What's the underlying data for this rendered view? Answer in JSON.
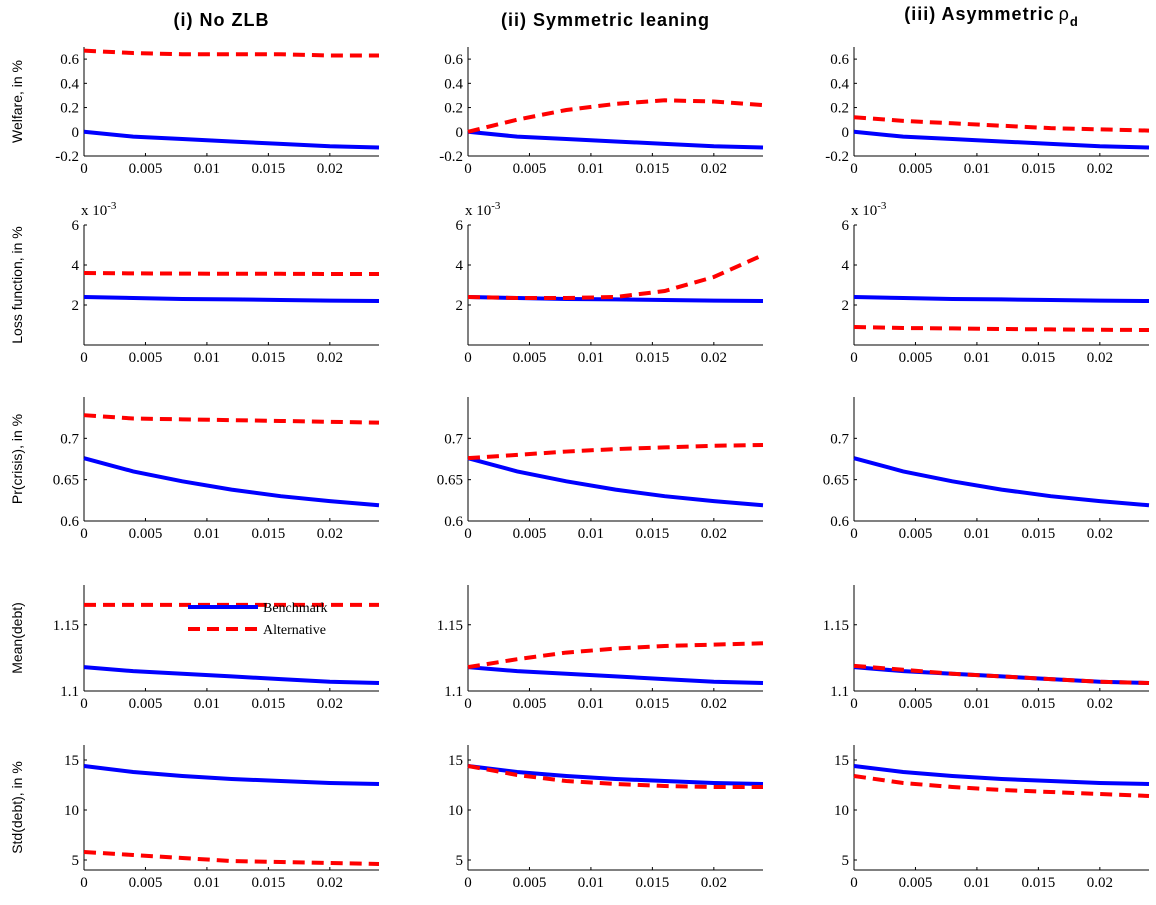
{
  "chart_data": [
    {
      "type": "line",
      "title": "(i) No ZLB",
      "ylabel": "Welfare, in %",
      "x": [
        0,
        0.004,
        0.008,
        0.012,
        0.016,
        0.02,
        0.024
      ],
      "xlim": [
        0,
        0.024
      ],
      "xticks": [
        0,
        0.005,
        0.01,
        0.015,
        0.02
      ],
      "ylim": [
        -0.2,
        0.7
      ],
      "yticks": [
        -0.2,
        0,
        0.2,
        0.4,
        0.6
      ],
      "series": [
        {
          "color": "#0000ff",
          "values": [
            0,
            -0.04,
            -0.06,
            -0.08,
            -0.1,
            -0.12,
            -0.13
          ]
        },
        {
          "color": "#ff0000",
          "dashed": true,
          "values": [
            0.67,
            0.65,
            0.64,
            0.64,
            0.64,
            0.63,
            0.63
          ]
        }
      ]
    },
    {
      "type": "line",
      "title": "(ii) Symmetric leaning",
      "x": [
        0,
        0.004,
        0.008,
        0.012,
        0.016,
        0.02,
        0.024
      ],
      "xlim": [
        0,
        0.024
      ],
      "xticks": [
        0,
        0.005,
        0.01,
        0.015,
        0.02
      ],
      "ylim": [
        -0.2,
        0.7
      ],
      "yticks": [
        -0.2,
        0,
        0.2,
        0.4,
        0.6
      ],
      "series": [
        {
          "color": "#0000ff",
          "values": [
            0,
            -0.04,
            -0.06,
            -0.08,
            -0.1,
            -0.12,
            -0.13
          ]
        },
        {
          "color": "#ff0000",
          "dashed": true,
          "values": [
            0,
            0.1,
            0.18,
            0.23,
            0.26,
            0.25,
            0.22
          ]
        }
      ]
    },
    {
      "type": "line",
      "title": "(iii) Asymmetric",
      "title_symbol": "ρ",
      "title_subscript": "d",
      "x": [
        0,
        0.004,
        0.008,
        0.012,
        0.016,
        0.02,
        0.024
      ],
      "xlim": [
        0,
        0.024
      ],
      "xticks": [
        0,
        0.005,
        0.01,
        0.015,
        0.02
      ],
      "ylim": [
        -0.2,
        0.7
      ],
      "yticks": [
        -0.2,
        0,
        0.2,
        0.4,
        0.6
      ],
      "series": [
        {
          "color": "#0000ff",
          "values": [
            0,
            -0.04,
            -0.06,
            -0.08,
            -0.1,
            -0.12,
            -0.13
          ]
        },
        {
          "color": "#ff0000",
          "dashed": true,
          "values": [
            0.12,
            0.09,
            0.07,
            0.05,
            0.03,
            0.02,
            0.01
          ]
        }
      ]
    },
    {
      "type": "line",
      "ylabel": "Loss function, in %",
      "y_multiplier": "x 10",
      "y_multiplier_exponent": "-3",
      "x": [
        0,
        0.004,
        0.008,
        0.012,
        0.016,
        0.02,
        0.024
      ],
      "xlim": [
        0,
        0.024
      ],
      "xticks": [
        0,
        0.005,
        0.01,
        0.015,
        0.02
      ],
      "ylim": [
        0,
        0.006
      ],
      "yticks": [
        {
          "value": 0.002,
          "label": "2"
        },
        {
          "value": 0.004,
          "label": "4"
        },
        {
          "value": 0.006,
          "label": "6"
        }
      ],
      "series": [
        {
          "color": "#0000ff",
          "values": [
            0.0024,
            0.00235,
            0.0023,
            0.00228,
            0.00225,
            0.00222,
            0.0022
          ]
        },
        {
          "color": "#ff0000",
          "dashed": true,
          "values": [
            0.0036,
            0.00358,
            0.00357,
            0.00356,
            0.00356,
            0.00355,
            0.00355
          ]
        }
      ]
    },
    {
      "type": "line",
      "y_multiplier": "x 10",
      "y_multiplier_exponent": "-3",
      "x": [
        0,
        0.004,
        0.008,
        0.012,
        0.016,
        0.02,
        0.024
      ],
      "xlim": [
        0,
        0.024
      ],
      "xticks": [
        0,
        0.005,
        0.01,
        0.015,
        0.02
      ],
      "ylim": [
        0,
        0.006
      ],
      "yticks": [
        {
          "value": 0.002,
          "label": "2"
        },
        {
          "value": 0.004,
          "label": "4"
        },
        {
          "value": 0.006,
          "label": "6"
        }
      ],
      "series": [
        {
          "color": "#0000ff",
          "values": [
            0.0024,
            0.00235,
            0.0023,
            0.00228,
            0.00225,
            0.00222,
            0.0022
          ]
        },
        {
          "color": "#ff0000",
          "dashed": true,
          "values": [
            0.0024,
            0.00235,
            0.00235,
            0.0024,
            0.0027,
            0.0034,
            0.0045
          ]
        }
      ]
    },
    {
      "type": "line",
      "y_multiplier": "x 10",
      "y_multiplier_exponent": "-3",
      "x": [
        0,
        0.004,
        0.008,
        0.012,
        0.016,
        0.02,
        0.024
      ],
      "xlim": [
        0,
        0.024
      ],
      "xticks": [
        0,
        0.005,
        0.01,
        0.015,
        0.02
      ],
      "ylim": [
        0,
        0.006
      ],
      "yticks": [
        {
          "value": 0.002,
          "label": "2"
        },
        {
          "value": 0.004,
          "label": "4"
        },
        {
          "value": 0.006,
          "label": "6"
        }
      ],
      "series": [
        {
          "color": "#0000ff",
          "values": [
            0.0024,
            0.00235,
            0.0023,
            0.00228,
            0.00225,
            0.00222,
            0.0022
          ]
        },
        {
          "color": "#ff0000",
          "dashed": true,
          "values": [
            0.0009,
            0.00085,
            0.00083,
            0.0008,
            0.00078,
            0.00076,
            0.00075
          ]
        }
      ]
    },
    {
      "type": "line",
      "ylabel": "Pr(crisis), in %",
      "x": [
        0,
        0.004,
        0.008,
        0.012,
        0.016,
        0.02,
        0.024
      ],
      "xlim": [
        0,
        0.024
      ],
      "xticks": [
        0,
        0.005,
        0.01,
        0.015,
        0.02
      ],
      "ylim": [
        0.6,
        0.75
      ],
      "yticks": [
        0.6,
        0.65,
        0.7
      ],
      "series": [
        {
          "color": "#0000ff",
          "values": [
            0.676,
            0.66,
            0.648,
            0.638,
            0.63,
            0.624,
            0.619
          ]
        },
        {
          "color": "#ff0000",
          "dashed": true,
          "values": [
            0.728,
            0.724,
            0.723,
            0.722,
            0.721,
            0.72,
            0.719
          ]
        }
      ]
    },
    {
      "type": "line",
      "x": [
        0,
        0.004,
        0.008,
        0.012,
        0.016,
        0.02,
        0.024
      ],
      "xlim": [
        0,
        0.024
      ],
      "xticks": [
        0,
        0.005,
        0.01,
        0.015,
        0.02
      ],
      "ylim": [
        0.6,
        0.75
      ],
      "yticks": [
        0.6,
        0.65,
        0.7
      ],
      "series": [
        {
          "color": "#0000ff",
          "values": [
            0.676,
            0.66,
            0.648,
            0.638,
            0.63,
            0.624,
            0.619
          ]
        },
        {
          "color": "#ff0000",
          "dashed": true,
          "values": [
            0.676,
            0.68,
            0.684,
            0.687,
            0.689,
            0.691,
            0.692
          ]
        }
      ]
    },
    {
      "type": "line",
      "x": [
        0,
        0.004,
        0.008,
        0.012,
        0.016,
        0.02,
        0.024
      ],
      "xlim": [
        0,
        0.024
      ],
      "xticks": [
        0,
        0.005,
        0.01,
        0.015,
        0.02
      ],
      "ylim": [
        0.6,
        0.75
      ],
      "yticks": [
        0.6,
        0.65,
        0.7
      ],
      "series": [
        {
          "color": "#0000ff",
          "values": [
            0.676,
            0.66,
            0.648,
            0.638,
            0.63,
            0.624,
            0.619
          ]
        }
      ]
    },
    {
      "type": "line",
      "ylabel": "Mean(debt)",
      "legend": true,
      "x": [
        0,
        0.004,
        0.008,
        0.012,
        0.016,
        0.02,
        0.024
      ],
      "xlim": [
        0,
        0.024
      ],
      "xticks": [
        0,
        0.005,
        0.01,
        0.015,
        0.02
      ],
      "ylim": [
        1.1,
        1.18
      ],
      "yticks": [
        1.1,
        1.15
      ],
      "series": [
        {
          "name": "Benchmark",
          "color": "#0000ff",
          "values": [
            1.118,
            1.115,
            1.113,
            1.111,
            1.109,
            1.107,
            1.106
          ]
        },
        {
          "name": "Alternative",
          "color": "#ff0000",
          "dashed": true,
          "values": [
            1.165,
            1.165,
            1.165,
            1.165,
            1.165,
            1.165,
            1.165
          ]
        }
      ]
    },
    {
      "type": "line",
      "x": [
        0,
        0.004,
        0.008,
        0.012,
        0.016,
        0.02,
        0.024
      ],
      "xlim": [
        0,
        0.024
      ],
      "xticks": [
        0,
        0.005,
        0.01,
        0.015,
        0.02
      ],
      "ylim": [
        1.1,
        1.18
      ],
      "yticks": [
        1.1,
        1.15
      ],
      "series": [
        {
          "color": "#0000ff",
          "values": [
            1.118,
            1.115,
            1.113,
            1.111,
            1.109,
            1.107,
            1.106
          ]
        },
        {
          "color": "#ff0000",
          "dashed": true,
          "values": [
            1.118,
            1.124,
            1.129,
            1.132,
            1.134,
            1.135,
            1.136
          ]
        }
      ]
    },
    {
      "type": "line",
      "x": [
        0,
        0.004,
        0.008,
        0.012,
        0.016,
        0.02,
        0.024
      ],
      "xlim": [
        0,
        0.024
      ],
      "xticks": [
        0,
        0.005,
        0.01,
        0.015,
        0.02
      ],
      "ylim": [
        1.1,
        1.18
      ],
      "yticks": [
        1.1,
        1.15
      ],
      "series": [
        {
          "color": "#0000ff",
          "values": [
            1.118,
            1.115,
            1.113,
            1.111,
            1.109,
            1.107,
            1.106
          ]
        },
        {
          "color": "#ff0000",
          "dashed": true,
          "values": [
            1.119,
            1.116,
            1.113,
            1.111,
            1.109,
            1.107,
            1.106
          ]
        }
      ]
    },
    {
      "type": "line",
      "ylabel": "Std(debt), in %",
      "x": [
        0,
        0.004,
        0.008,
        0.012,
        0.016,
        0.02,
        0.024
      ],
      "xlim": [
        0,
        0.024
      ],
      "xticks": [
        0,
        0.005,
        0.01,
        0.015,
        0.02
      ],
      "ylim": [
        4,
        16.5
      ],
      "yticks": [
        5,
        10,
        15
      ],
      "series": [
        {
          "color": "#0000ff",
          "values": [
            14.4,
            13.8,
            13.4,
            13.1,
            12.9,
            12.7,
            12.6
          ]
        },
        {
          "color": "#ff0000",
          "dashed": true,
          "values": [
            5.8,
            5.5,
            5.2,
            4.9,
            4.8,
            4.7,
            4.6
          ]
        }
      ]
    },
    {
      "type": "line",
      "x": [
        0,
        0.004,
        0.008,
        0.012,
        0.016,
        0.02,
        0.024
      ],
      "xlim": [
        0,
        0.024
      ],
      "xticks": [
        0,
        0.005,
        0.01,
        0.015,
        0.02
      ],
      "ylim": [
        4,
        16.5
      ],
      "yticks": [
        5,
        10,
        15
      ],
      "series": [
        {
          "color": "#0000ff",
          "values": [
            14.4,
            13.8,
            13.4,
            13.1,
            12.9,
            12.7,
            12.6
          ]
        },
        {
          "color": "#ff0000",
          "dashed": true,
          "values": [
            14.4,
            13.5,
            12.9,
            12.6,
            12.4,
            12.3,
            12.3
          ]
        }
      ]
    },
    {
      "type": "line",
      "x": [
        0,
        0.004,
        0.008,
        0.012,
        0.016,
        0.02,
        0.024
      ],
      "xlim": [
        0,
        0.024
      ],
      "xticks": [
        0,
        0.005,
        0.01,
        0.015,
        0.02
      ],
      "ylim": [
        4,
        16.5
      ],
      "yticks": [
        5,
        10,
        15
      ],
      "series": [
        {
          "color": "#0000ff",
          "values": [
            14.4,
            13.8,
            13.4,
            13.1,
            12.9,
            12.7,
            12.6
          ]
        },
        {
          "color": "#ff0000",
          "dashed": true,
          "values": [
            13.4,
            12.7,
            12.3,
            12.0,
            11.8,
            11.6,
            11.4
          ]
        }
      ]
    }
  ]
}
